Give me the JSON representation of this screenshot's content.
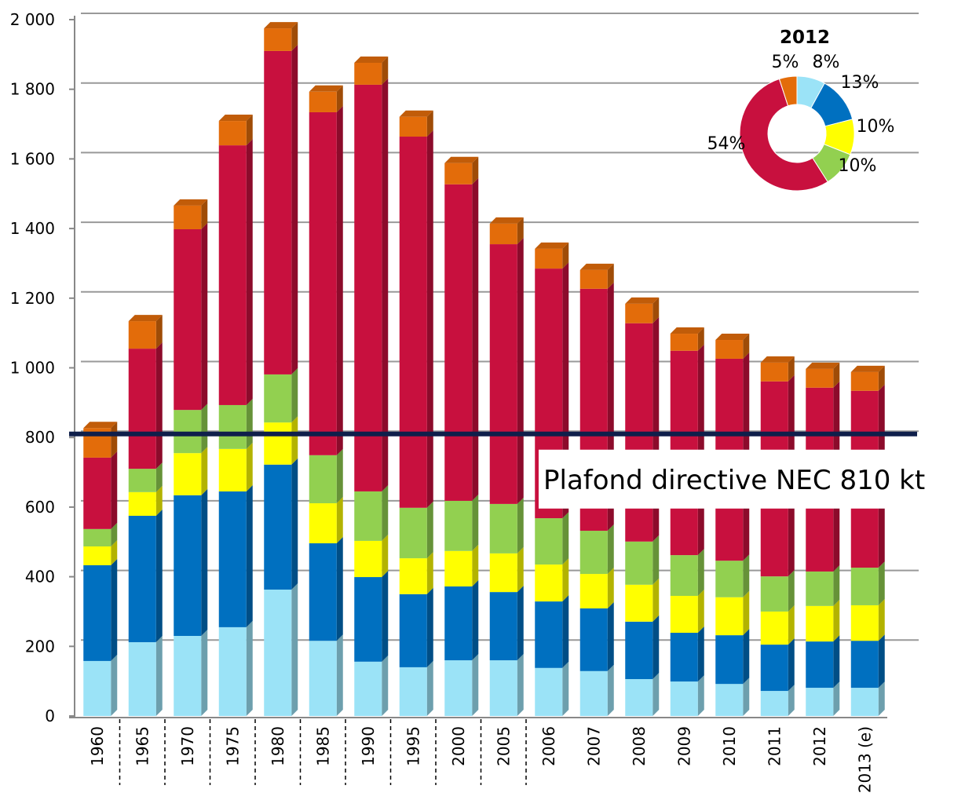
{
  "chart_data": [
    {
      "type": "stacked_bar",
      "categories": [
        "1960",
        "1965",
        "1970",
        "1975",
        "1980",
        "1985",
        "1990",
        "1995",
        "2000",
        "2005",
        "2006",
        "2007",
        "2008",
        "2009",
        "2010",
        "2011",
        "2012",
        "2013 (e)"
      ],
      "series": [
        {
          "color": "#9be3f7",
          "values": [
            158,
            212,
            230,
            255,
            363,
            216,
            156,
            140,
            160,
            160,
            138,
            129,
            106,
            99,
            92,
            72,
            81,
            81
          ]
        },
        {
          "color": "#0070c0",
          "values": [
            275,
            363,
            404,
            390,
            359,
            280,
            243,
            210,
            212,
            196,
            191,
            180,
            165,
            140,
            140,
            133,
            133,
            135
          ]
        },
        {
          "color": "#ffff00",
          "values": [
            54,
            68,
            121,
            122,
            121,
            115,
            104,
            103,
            102,
            111,
            106,
            99,
            106,
            106,
            109,
            95,
            102,
            102
          ]
        },
        {
          "color": "#92d050",
          "values": [
            50,
            67,
            124,
            126,
            138,
            138,
            142,
            145,
            144,
            142,
            133,
            124,
            124,
            117,
            105,
            101,
            99,
            108
          ]
        },
        {
          "color": "#c8103e",
          "values": [
            205,
            345,
            519,
            746,
            929,
            985,
            1168,
            1066,
            909,
            746,
            717,
            695,
            627,
            587,
            580,
            560,
            528,
            508
          ]
        },
        {
          "color": "#e36c0a",
          "values": [
            85,
            79,
            68,
            70,
            65,
            59,
            63,
            57,
            61,
            59,
            57,
            54,
            56,
            49,
            54,
            54,
            54,
            54
          ]
        }
      ],
      "ylim": [
        0,
        2000
      ],
      "yticks": [
        0,
        200,
        400,
        600,
        800,
        {
          "value": 1000,
          "label": "1 000"
        },
        {
          "value": 1200,
          "label": "1 200"
        },
        {
          "value": 1400,
          "label": "1 400"
        },
        {
          "value": 1600,
          "label": "1 600"
        },
        {
          "value": 1800,
          "label": "1 800"
        },
        {
          "value": 2000,
          "label": "2 000"
        }
      ],
      "grid": true,
      "reference_line": {
        "value": 810,
        "label": "Plafond directive NEC 810 kt",
        "color": "#0f1f4b"
      }
    },
    {
      "type": "donut",
      "title": "2012",
      "values": [
        8,
        13,
        10,
        10,
        54,
        5
      ],
      "value_labels": [
        "8%",
        "13%",
        "10%",
        "10%",
        "54%",
        "5%"
      ],
      "colors": [
        "#9be3f7",
        "#0070c0",
        "#ffff00",
        "#92d050",
        "#c8103e",
        "#e36c0a"
      ]
    }
  ]
}
